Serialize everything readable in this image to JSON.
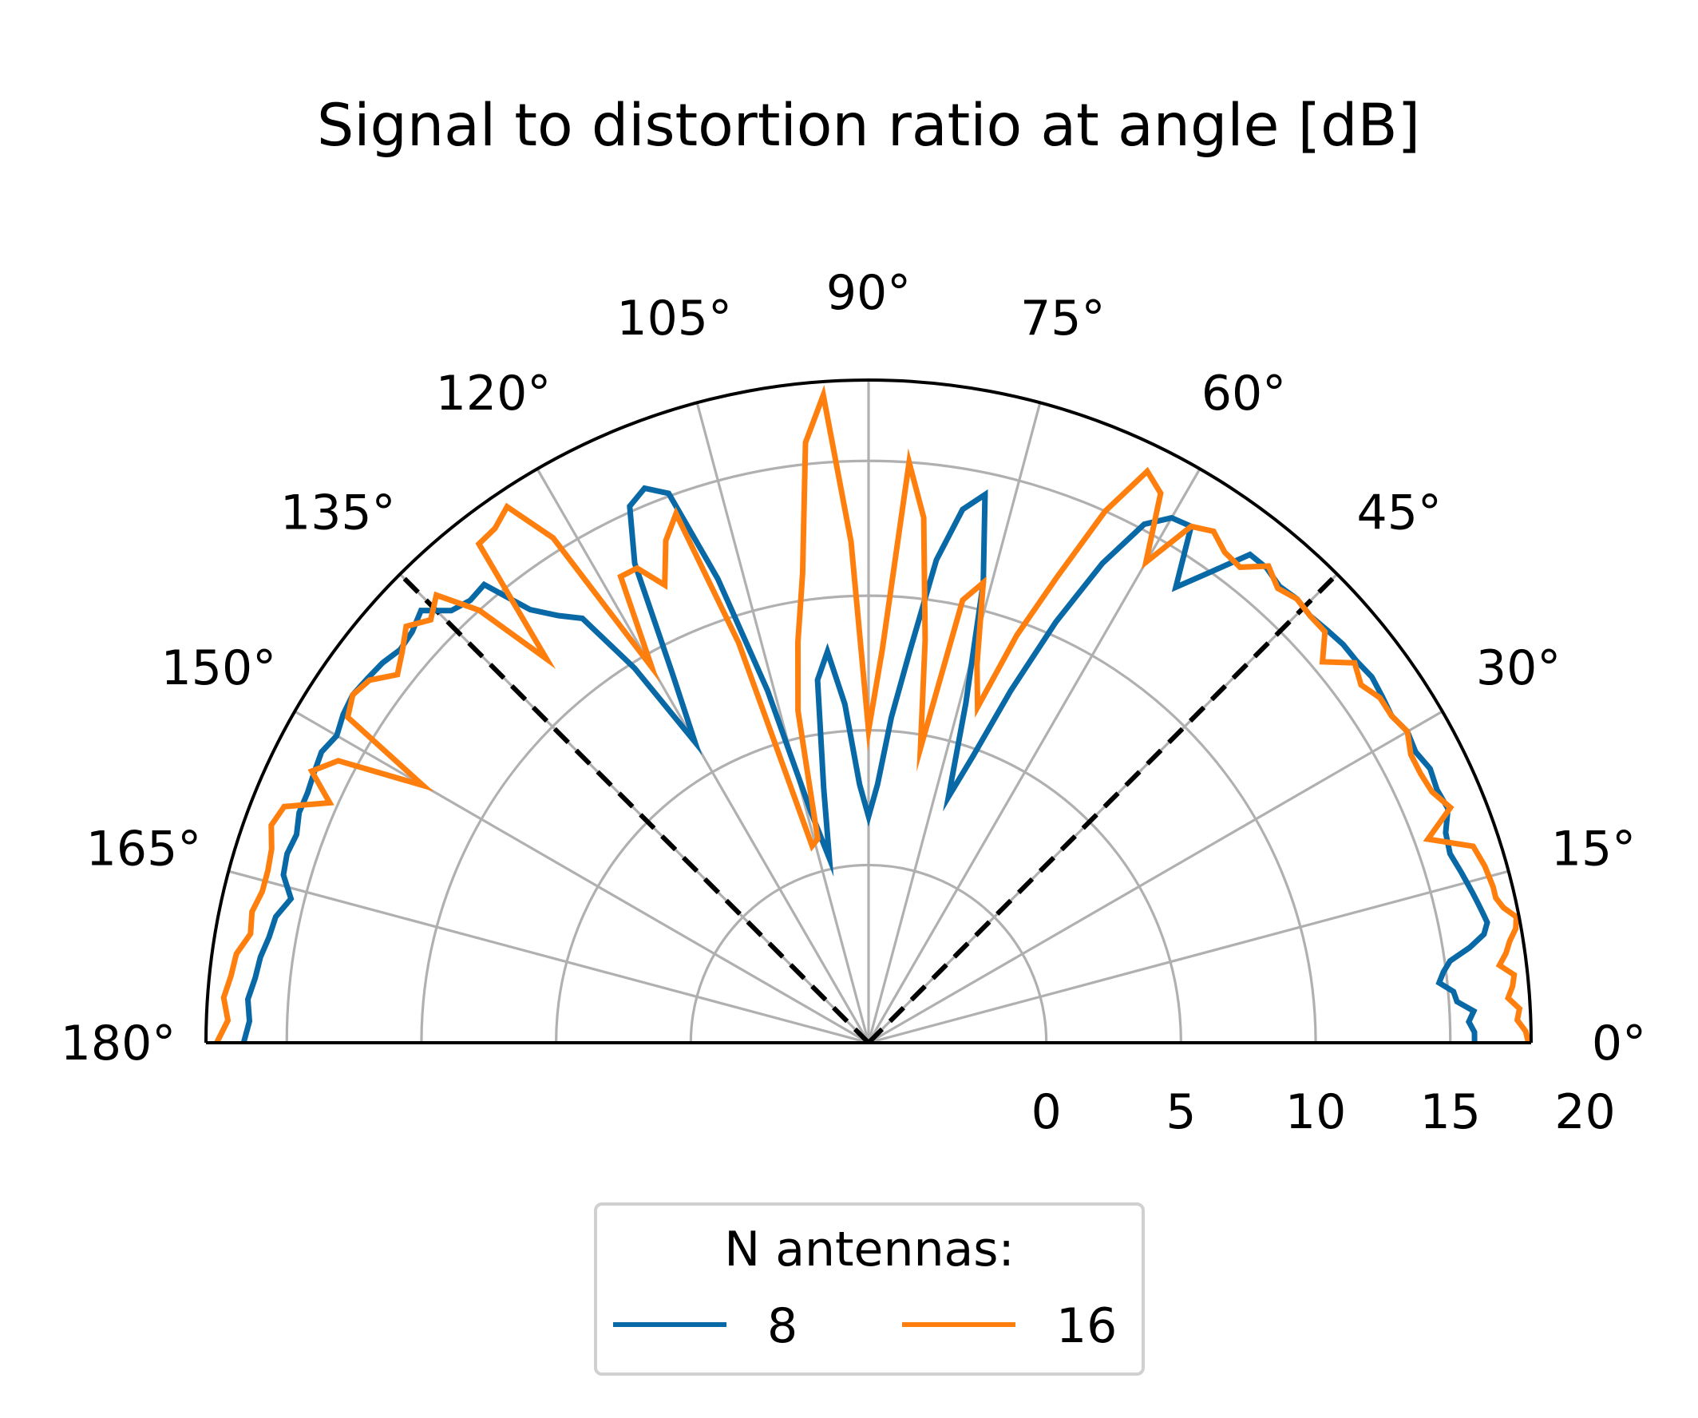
{
  "chart_data": {
    "type": "polar-line",
    "title": "Signal to distortion ratio at angle [dB]",
    "theta_range_deg": [
      0,
      180
    ],
    "r_range": [
      -6.6,
      18
    ],
    "r_ticks": [
      0,
      5,
      10,
      15,
      20
    ],
    "theta_ticks_deg": [
      0,
      15,
      30,
      45,
      60,
      75,
      90,
      105,
      120,
      135,
      150,
      165,
      180
    ],
    "theta_tick_labels": [
      "0°",
      "15°",
      "30°",
      "45°",
      "60°",
      "75°",
      "90°",
      "105°",
      "120°",
      "135°",
      "150°",
      "165°",
      "180°"
    ],
    "r_tick_labels": [
      "0",
      "5",
      "10",
      "15",
      "20"
    ],
    "grid": true,
    "reference_lines_deg": [
      45,
      135
    ],
    "legend": {
      "title": "N antennas:",
      "placement": "bottom-center",
      "columns": 2
    },
    "colors": {
      "s8": "#0869a6",
      "s16": "#ff7f0e",
      "grid": "#b0b0b0",
      "reference": "#000000"
    },
    "series": [
      {
        "name": "8",
        "color": "#0869a6",
        "theta": [
          0,
          1,
          2,
          3,
          4,
          5,
          6,
          7,
          8,
          9,
          10,
          11,
          12,
          13,
          14,
          16,
          18,
          20,
          22,
          24,
          26,
          28,
          30,
          32,
          34,
          36,
          38,
          40,
          42,
          44,
          46,
          48,
          50,
          52,
          54,
          56,
          58,
          60,
          62,
          64,
          66,
          68,
          70,
          72,
          74,
          76,
          78,
          80,
          82,
          84,
          86,
          88,
          90,
          92,
          94,
          96,
          98,
          100,
          102,
          104,
          106,
          108,
          110,
          112,
          114,
          116,
          118,
          120,
          122,
          124,
          126,
          128,
          130,
          132,
          134,
          136,
          138,
          140,
          142,
          144,
          146,
          148,
          150,
          152,
          154,
          156,
          158,
          160,
          162,
          164,
          166,
          168,
          170,
          172,
          174,
          176,
          178,
          180
        ],
        "r": [
          15.9,
          15.9,
          15.7,
          15.9,
          15.3,
          15.2,
          14.7,
          14.9,
          15.2,
          16.0,
          16.6,
          16.8,
          16.7,
          16.6,
          16.5,
          16.3,
          16.1,
          16.2,
          16.6,
          16.5,
          16.6,
          16.4,
          16.5,
          16.3,
          16.4,
          16.5,
          16.4,
          16.4,
          16.3,
          16.2,
          16.3,
          16.2,
          16.4,
          16.4,
          15.0,
          13.8,
          16.0,
          15.9,
          15.2,
          13.2,
          10.5,
          7.5,
          4.7,
          3.0,
          6.5,
          11.0,
          14.2,
          13.5,
          11.5,
          8.0,
          5.5,
          3.0,
          1.8,
          3.0,
          6.0,
          8.0,
          7.0,
          3.0,
          0.4,
          2.2,
          7.0,
          11.5,
          15.1,
          15.6,
          15.2,
          13.2,
          8.9,
          6.3,
          9.8,
          12.4,
          13.0,
          13.8,
          15.6,
          15.5,
          15.7,
          16.5,
          16.2,
          16.1,
          16.3,
          16.4,
          16.5,
          16.4,
          16.2,
          16.4,
          16.3,
          16.2,
          16.2,
          16.0,
          16.1,
          16.0,
          15.5,
          15.9,
          16.0,
          16.2,
          16.3,
          16.5,
          16.4,
          16.6
        ]
      },
      {
        "name": "16",
        "color": "#ff7f0e",
        "theta": [
          0,
          1,
          2,
          3,
          4,
          5,
          6,
          7,
          8,
          9,
          10,
          11,
          12,
          13,
          14,
          16,
          18,
          20,
          22,
          24,
          26,
          28,
          30,
          32,
          34,
          36,
          38,
          40,
          42,
          44,
          46,
          48,
          50,
          52,
          54,
          56,
          58,
          60,
          62,
          64,
          66,
          68,
          70,
          72,
          74,
          76,
          78,
          80,
          82,
          84,
          86,
          88,
          90,
          92,
          94,
          96,
          98,
          100,
          102,
          104,
          106,
          108,
          110,
          112,
          114,
          116,
          118,
          120,
          122,
          124,
          126,
          128,
          130,
          132,
          134,
          136,
          138,
          140,
          142,
          144,
          146,
          148,
          150,
          152,
          154,
          156,
          158,
          160,
          162,
          164,
          166,
          168,
          170,
          172,
          174,
          176,
          178,
          180
        ],
        "r": [
          17.9,
          17.8,
          17.5,
          17.6,
          17.2,
          17.4,
          17.5,
          17.0,
          17.3,
          17.5,
          17.8,
          17.9,
          17.5,
          17.3,
          17.3,
          17.2,
          17.0,
          15.5,
          16.7,
          16.3,
          16.2,
          16.2,
          16.5,
          16.3,
          16.3,
          16.0,
          16.3,
          15.4,
          16.2,
          16.2,
          16.3,
          16.1,
          16.5,
          15.8,
          15.9,
          16.3,
          16.0,
          14.0,
          16.5,
          17.0,
          15.0,
          12.0,
          9.5,
          6.5,
          8.0,
          11.0,
          10.2,
          4.5,
          8.5,
          13.0,
          15.0,
          8.0,
          5.0,
          12.0,
          17.5,
          15.8,
          11.0,
          8.5,
          6.0,
          1.2,
          1.0,
          9.0,
          14.3,
          13.5,
          12.0,
          13.0,
          13.0,
          9.5,
          15.5,
          17.4,
          17.0,
          16.9,
          12.0,
          15.0,
          16.5,
          16.0,
          16.5,
          16.0,
          15.6,
          16.3,
          16.5,
          16.2,
          12.5,
          15.7,
          16.4,
          15.3,
          16.8,
          17.0,
          16.7,
          16.6,
          16.6,
          16.8,
          16.7,
          17.1,
          17.2,
          17.4,
          17.2,
          17.6
        ]
      }
    ]
  }
}
